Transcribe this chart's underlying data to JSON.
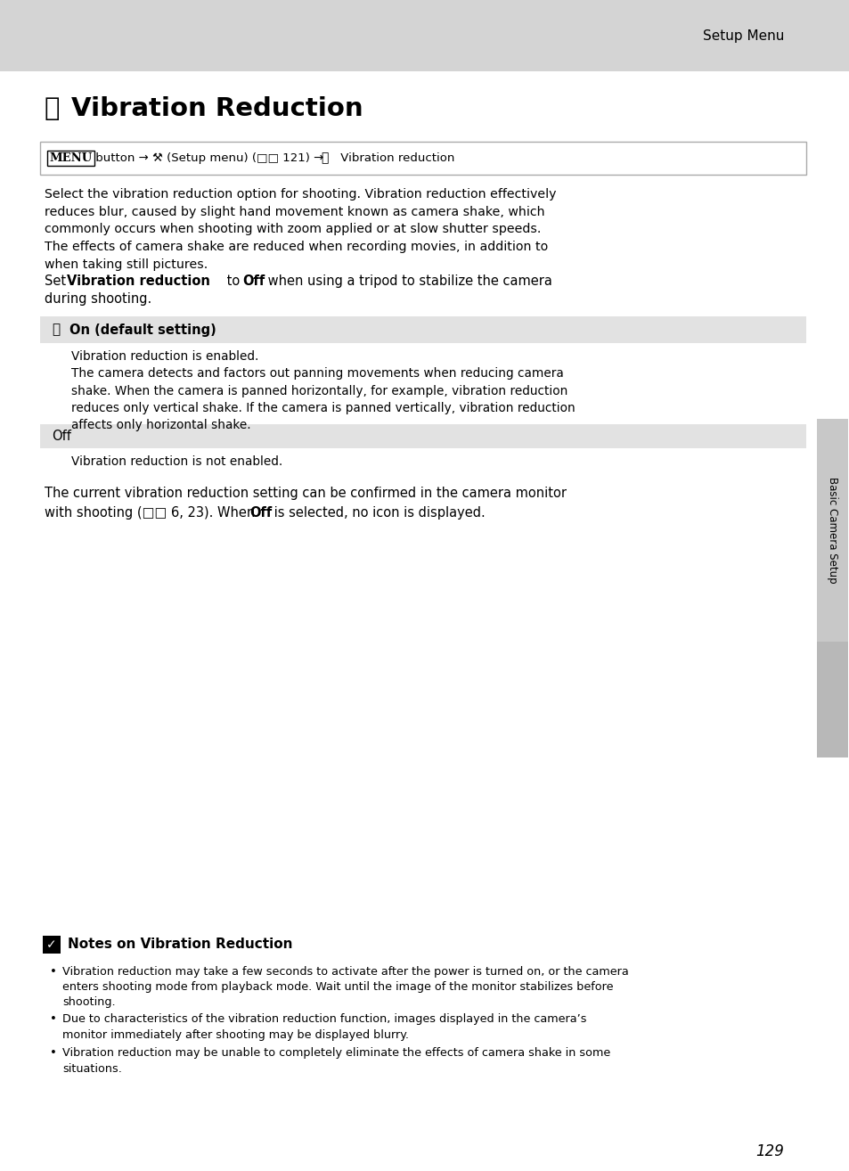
{
  "page_bg": "#ffffff",
  "header_bg": "#d4d4d4",
  "header_text": "Setup Menu",
  "title": "Vibration Reduction",
  "row_bg": "#e2e2e2",
  "nav_border": "#aaaaaa",
  "sidebar_text": "Basic Camera Setup",
  "sidebar_bg": "#c8c8c8",
  "tab_bg": "#b8b8b8",
  "page_number": "129",
  "notes_title": "Notes on Vibration Reduction",
  "body1": "Select the vibration reduction option for shooting. Vibration reduction effectively\nreduces blur, caused by slight hand movement known as camera shake, which\ncommonly occurs when shooting with zoom applied or at slow shutter speeds.\nThe effects of camera shake are reduced when recording movies, in addition to\nwhen taking still pictures.",
  "row1_label": "On (default setting)",
  "row1_body": "Vibration reduction is enabled.\nThe camera detects and factors out panning movements when reducing camera\nshake. When the camera is panned horizontally, for example, vibration reduction\nreduces only vertical shake. If the camera is panned vertically, vibration reduction\naffects only horizontal shake.",
  "row2_label": "Off",
  "row2_body": "Vibration reduction is not enabled.",
  "close1": "The current vibration reduction setting can be confirmed in the camera monitor",
  "close2a": "with shooting (□□ 6, 23). When ",
  "close2b": "Off",
  "close2c": " is selected, no icon is displayed.",
  "notes_bullets": [
    "Vibration reduction may take a few seconds to activate after the power is turned on, or the camera\nenters shooting mode from playback mode. Wait until the image of the monitor stabilizes before\nshooting.",
    "Due to characteristics of the vibration reduction function, images displayed in the camera’s\nmonitor immediately after shooting may be displayed blurry.",
    "Vibration reduction may be unable to completely eliminate the effects of camera shake in some\nsituations."
  ],
  "ml": 50,
  "mr": 900,
  "indent": 80
}
